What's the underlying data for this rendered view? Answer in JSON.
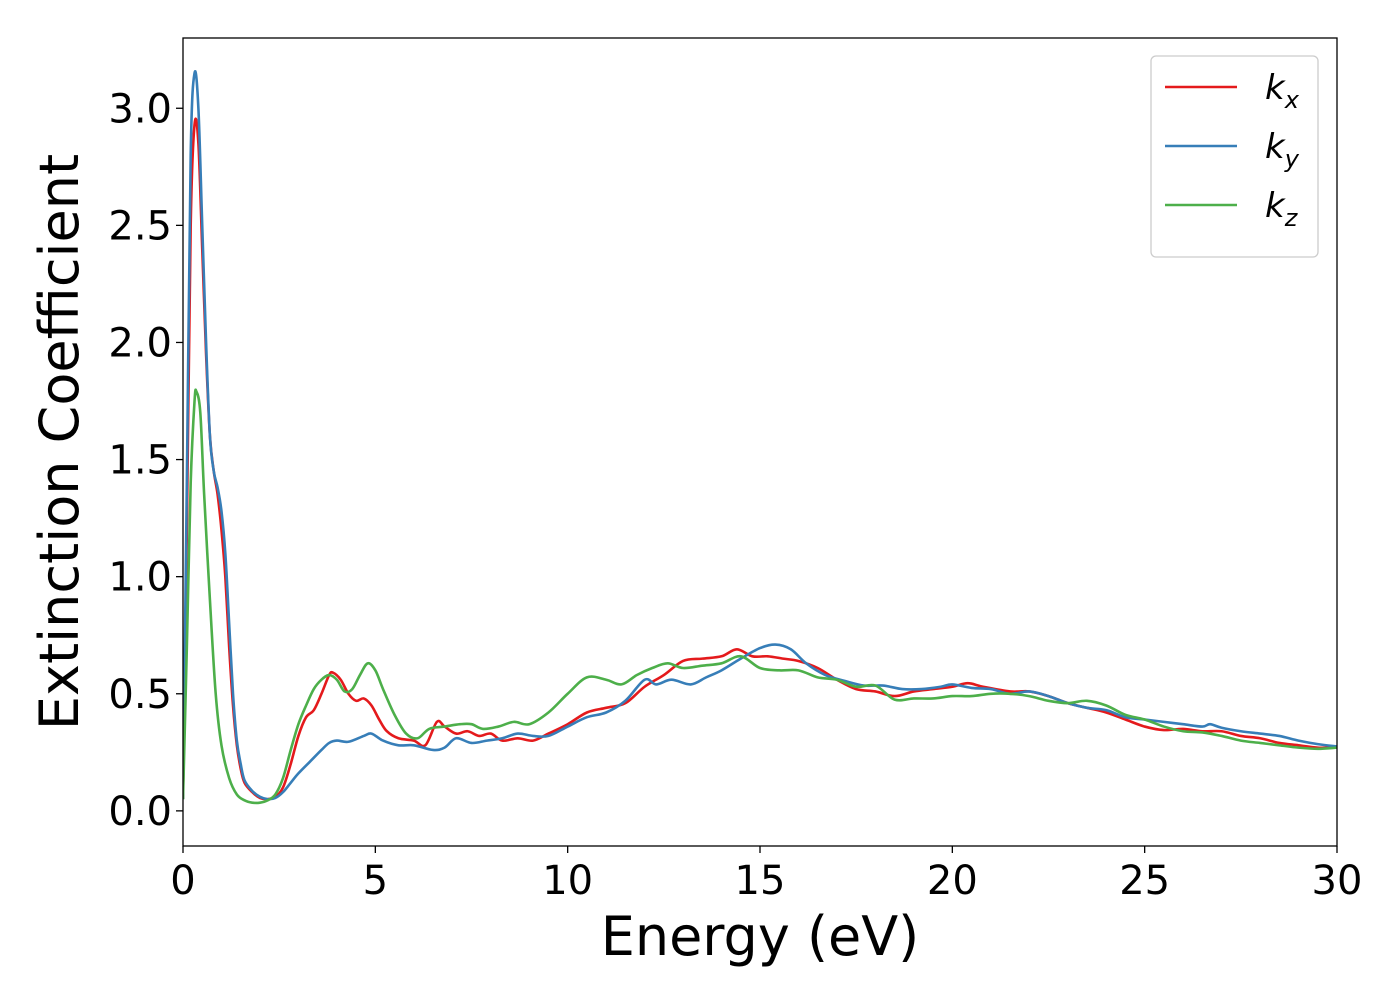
{
  "chart_data": {
    "type": "line",
    "xlabel": "Energy (eV)",
    "ylabel": "Extinction Coefficient",
    "xlim": [
      0,
      30
    ],
    "ylim": [
      -0.15,
      3.3
    ],
    "xticks": [
      0,
      5,
      10,
      15,
      20,
      25,
      30
    ],
    "xtick_labels": [
      "0",
      "5",
      "10",
      "15",
      "20",
      "25",
      "30"
    ],
    "yticks": [
      0.0,
      0.5,
      1.0,
      1.5,
      2.0,
      2.5,
      3.0
    ],
    "ytick_labels": [
      "0.0",
      "0.5",
      "1.0",
      "1.5",
      "2.0",
      "2.5",
      "3.0"
    ],
    "grid": false,
    "legend_position": "top-right",
    "series": [
      {
        "name": "k",
        "subscript": "x",
        "color": "#e41a1c",
        "points": [
          [
            0,
            0.05
          ],
          [
            0.1,
            1.2
          ],
          [
            0.2,
            2.5
          ],
          [
            0.3,
            2.93
          ],
          [
            0.4,
            2.85
          ],
          [
            0.5,
            2.4
          ],
          [
            0.6,
            1.95
          ],
          [
            0.7,
            1.6
          ],
          [
            0.8,
            1.45
          ],
          [
            0.9,
            1.35
          ],
          [
            1.0,
            1.2
          ],
          [
            1.1,
            1.0
          ],
          [
            1.2,
            0.7
          ],
          [
            1.3,
            0.45
          ],
          [
            1.4,
            0.28
          ],
          [
            1.5,
            0.18
          ],
          [
            1.6,
            0.12
          ],
          [
            1.8,
            0.08
          ],
          [
            2.0,
            0.055
          ],
          [
            2.2,
            0.05
          ],
          [
            2.4,
            0.06
          ],
          [
            2.6,
            0.1
          ],
          [
            2.8,
            0.2
          ],
          [
            3.0,
            0.32
          ],
          [
            3.2,
            0.4
          ],
          [
            3.4,
            0.43
          ],
          [
            3.6,
            0.5
          ],
          [
            3.8,
            0.58
          ],
          [
            3.9,
            0.59
          ],
          [
            4.1,
            0.56
          ],
          [
            4.3,
            0.5
          ],
          [
            4.5,
            0.47
          ],
          [
            4.7,
            0.48
          ],
          [
            4.9,
            0.45
          ],
          [
            5.1,
            0.39
          ],
          [
            5.3,
            0.34
          ],
          [
            5.6,
            0.31
          ],
          [
            6.0,
            0.3
          ],
          [
            6.3,
            0.28
          ],
          [
            6.6,
            0.38
          ],
          [
            6.8,
            0.36
          ],
          [
            7.1,
            0.33
          ],
          [
            7.4,
            0.34
          ],
          [
            7.7,
            0.32
          ],
          [
            8.0,
            0.33
          ],
          [
            8.3,
            0.3
          ],
          [
            8.7,
            0.31
          ],
          [
            9.1,
            0.3
          ],
          [
            9.5,
            0.33
          ],
          [
            10.0,
            0.37
          ],
          [
            10.5,
            0.42
          ],
          [
            11.0,
            0.44
          ],
          [
            11.5,
            0.46
          ],
          [
            12.0,
            0.53
          ],
          [
            12.5,
            0.58
          ],
          [
            13.0,
            0.64
          ],
          [
            13.5,
            0.65
          ],
          [
            14.0,
            0.66
          ],
          [
            14.4,
            0.69
          ],
          [
            14.8,
            0.66
          ],
          [
            15.2,
            0.66
          ],
          [
            15.6,
            0.65
          ],
          [
            16.0,
            0.64
          ],
          [
            16.5,
            0.61
          ],
          [
            17.0,
            0.56
          ],
          [
            17.5,
            0.52
          ],
          [
            18.0,
            0.51
          ],
          [
            18.5,
            0.49
          ],
          [
            19.0,
            0.51
          ],
          [
            19.5,
            0.52
          ],
          [
            20.0,
            0.53
          ],
          [
            20.4,
            0.545
          ],
          [
            20.8,
            0.53
          ],
          [
            21.5,
            0.51
          ],
          [
            22.0,
            0.51
          ],
          [
            22.5,
            0.49
          ],
          [
            23.0,
            0.46
          ],
          [
            23.5,
            0.44
          ],
          [
            24.0,
            0.42
          ],
          [
            24.5,
            0.39
          ],
          [
            25.0,
            0.36
          ],
          [
            25.5,
            0.345
          ],
          [
            26.0,
            0.35
          ],
          [
            26.5,
            0.34
          ],
          [
            27.0,
            0.34
          ],
          [
            27.5,
            0.32
          ],
          [
            28.0,
            0.31
          ],
          [
            28.5,
            0.29
          ],
          [
            29.0,
            0.28
          ],
          [
            29.5,
            0.27
          ],
          [
            30.0,
            0.27
          ]
        ]
      },
      {
        "name": "k",
        "subscript": "y",
        "color": "#377eb8",
        "points": [
          [
            0,
            0.05
          ],
          [
            0.1,
            1.4
          ],
          [
            0.2,
            2.8
          ],
          [
            0.3,
            3.15
          ],
          [
            0.4,
            3.0
          ],
          [
            0.5,
            2.5
          ],
          [
            0.6,
            2.0
          ],
          [
            0.7,
            1.6
          ],
          [
            0.8,
            1.45
          ],
          [
            0.9,
            1.38
          ],
          [
            1.0,
            1.28
          ],
          [
            1.1,
            1.1
          ],
          [
            1.2,
            0.8
          ],
          [
            1.3,
            0.5
          ],
          [
            1.4,
            0.3
          ],
          [
            1.5,
            0.2
          ],
          [
            1.6,
            0.13
          ],
          [
            1.8,
            0.085
          ],
          [
            2.0,
            0.06
          ],
          [
            2.2,
            0.05
          ],
          [
            2.4,
            0.055
          ],
          [
            2.6,
            0.08
          ],
          [
            2.8,
            0.12
          ],
          [
            3.0,
            0.16
          ],
          [
            3.3,
            0.21
          ],
          [
            3.6,
            0.26
          ],
          [
            3.8,
            0.29
          ],
          [
            4.0,
            0.3
          ],
          [
            4.3,
            0.295
          ],
          [
            4.7,
            0.32
          ],
          [
            4.9,
            0.33
          ],
          [
            5.2,
            0.3
          ],
          [
            5.6,
            0.28
          ],
          [
            6.0,
            0.28
          ],
          [
            6.5,
            0.26
          ],
          [
            6.8,
            0.27
          ],
          [
            7.1,
            0.31
          ],
          [
            7.5,
            0.29
          ],
          [
            7.9,
            0.3
          ],
          [
            8.3,
            0.31
          ],
          [
            8.7,
            0.33
          ],
          [
            9.1,
            0.32
          ],
          [
            9.5,
            0.32
          ],
          [
            10.0,
            0.36
          ],
          [
            10.5,
            0.4
          ],
          [
            11.0,
            0.42
          ],
          [
            11.5,
            0.47
          ],
          [
            12.0,
            0.56
          ],
          [
            12.3,
            0.54
          ],
          [
            12.7,
            0.56
          ],
          [
            13.2,
            0.54
          ],
          [
            13.6,
            0.57
          ],
          [
            14.0,
            0.6
          ],
          [
            14.5,
            0.65
          ],
          [
            15.0,
            0.695
          ],
          [
            15.4,
            0.71
          ],
          [
            15.8,
            0.69
          ],
          [
            16.2,
            0.63
          ],
          [
            16.7,
            0.58
          ],
          [
            17.2,
            0.555
          ],
          [
            17.7,
            0.535
          ],
          [
            18.2,
            0.535
          ],
          [
            18.7,
            0.52
          ],
          [
            19.2,
            0.52
          ],
          [
            19.7,
            0.53
          ],
          [
            20.0,
            0.54
          ],
          [
            20.5,
            0.525
          ],
          [
            21.0,
            0.52
          ],
          [
            21.5,
            0.5
          ],
          [
            22.0,
            0.51
          ],
          [
            22.5,
            0.49
          ],
          [
            23.0,
            0.46
          ],
          [
            23.5,
            0.44
          ],
          [
            24.0,
            0.43
          ],
          [
            24.5,
            0.4
          ],
          [
            25.0,
            0.39
          ],
          [
            25.5,
            0.38
          ],
          [
            26.0,
            0.37
          ],
          [
            26.5,
            0.36
          ],
          [
            26.7,
            0.37
          ],
          [
            27.0,
            0.355
          ],
          [
            27.5,
            0.34
          ],
          [
            28.0,
            0.33
          ],
          [
            28.5,
            0.32
          ],
          [
            29.0,
            0.3
          ],
          [
            29.5,
            0.285
          ],
          [
            30.0,
            0.275
          ]
        ]
      },
      {
        "name": "k",
        "subscript": "z",
        "color": "#4daf4a",
        "points": [
          [
            0,
            0.05
          ],
          [
            0.1,
            0.7
          ],
          [
            0.2,
            1.4
          ],
          [
            0.3,
            1.75
          ],
          [
            0.35,
            1.79
          ],
          [
            0.45,
            1.7
          ],
          [
            0.55,
            1.35
          ],
          [
            0.7,
            0.9
          ],
          [
            0.85,
            0.5
          ],
          [
            1.0,
            0.28
          ],
          [
            1.2,
            0.14
          ],
          [
            1.4,
            0.07
          ],
          [
            1.6,
            0.045
          ],
          [
            1.8,
            0.035
          ],
          [
            2.0,
            0.035
          ],
          [
            2.2,
            0.045
          ],
          [
            2.4,
            0.07
          ],
          [
            2.6,
            0.14
          ],
          [
            2.8,
            0.26
          ],
          [
            3.0,
            0.37
          ],
          [
            3.2,
            0.45
          ],
          [
            3.4,
            0.52
          ],
          [
            3.6,
            0.56
          ],
          [
            3.8,
            0.58
          ],
          [
            4.0,
            0.56
          ],
          [
            4.2,
            0.51
          ],
          [
            4.4,
            0.52
          ],
          [
            4.6,
            0.58
          ],
          [
            4.8,
            0.63
          ],
          [
            5.0,
            0.6
          ],
          [
            5.2,
            0.52
          ],
          [
            5.5,
            0.41
          ],
          [
            5.8,
            0.33
          ],
          [
            6.1,
            0.31
          ],
          [
            6.4,
            0.35
          ],
          [
            6.8,
            0.36
          ],
          [
            7.2,
            0.37
          ],
          [
            7.5,
            0.37
          ],
          [
            7.8,
            0.35
          ],
          [
            8.2,
            0.36
          ],
          [
            8.6,
            0.38
          ],
          [
            9.0,
            0.37
          ],
          [
            9.5,
            0.42
          ],
          [
            10.0,
            0.5
          ],
          [
            10.5,
            0.57
          ],
          [
            11.0,
            0.56
          ],
          [
            11.4,
            0.54
          ],
          [
            11.8,
            0.58
          ],
          [
            12.2,
            0.61
          ],
          [
            12.6,
            0.63
          ],
          [
            13.0,
            0.61
          ],
          [
            13.5,
            0.62
          ],
          [
            14.0,
            0.63
          ],
          [
            14.5,
            0.66
          ],
          [
            15.0,
            0.61
          ],
          [
            15.5,
            0.6
          ],
          [
            16.0,
            0.6
          ],
          [
            16.5,
            0.57
          ],
          [
            17.0,
            0.56
          ],
          [
            17.5,
            0.53
          ],
          [
            18.0,
            0.535
          ],
          [
            18.5,
            0.475
          ],
          [
            19.0,
            0.48
          ],
          [
            19.5,
            0.48
          ],
          [
            20.0,
            0.49
          ],
          [
            20.5,
            0.49
          ],
          [
            21.0,
            0.5
          ],
          [
            21.5,
            0.5
          ],
          [
            22.0,
            0.49
          ],
          [
            22.5,
            0.47
          ],
          [
            23.0,
            0.46
          ],
          [
            23.5,
            0.47
          ],
          [
            24.0,
            0.45
          ],
          [
            24.5,
            0.41
          ],
          [
            25.0,
            0.39
          ],
          [
            25.5,
            0.36
          ],
          [
            26.0,
            0.34
          ],
          [
            26.5,
            0.335
          ],
          [
            27.0,
            0.32
          ],
          [
            27.5,
            0.3
          ],
          [
            28.0,
            0.29
          ],
          [
            28.5,
            0.28
          ],
          [
            29.0,
            0.27
          ],
          [
            29.5,
            0.265
          ],
          [
            30.0,
            0.27
          ]
        ]
      }
    ]
  }
}
